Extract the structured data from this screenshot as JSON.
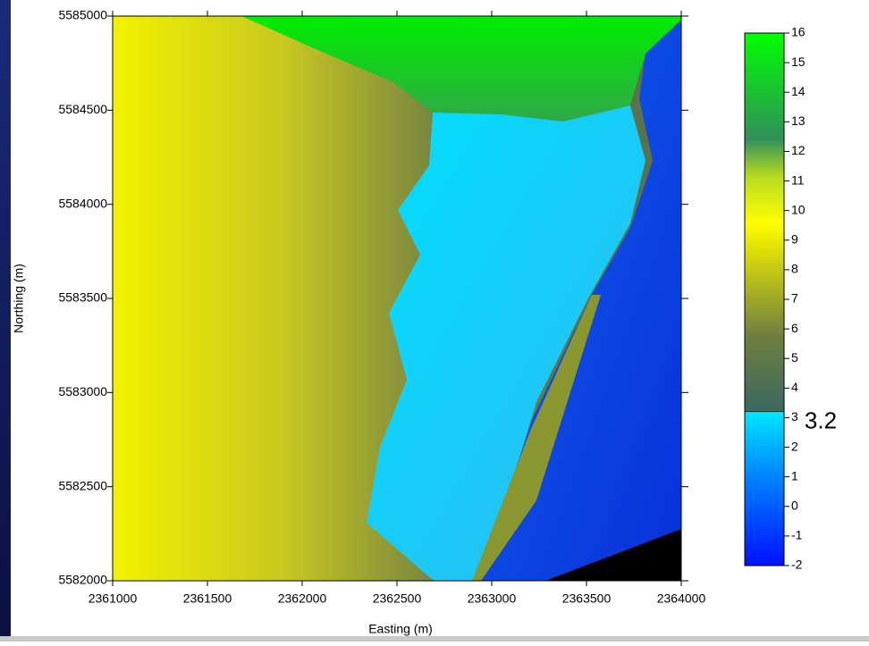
{
  "map": {
    "x_label": "Easting (m)",
    "y_label": "Northing (m)",
    "xlim": [
      2361000,
      2364000
    ],
    "xticks": [
      2361000,
      2361500,
      2362000,
      2362500,
      2363000,
      2363500,
      2364000
    ],
    "ylim": [
      5582000,
      5585000
    ],
    "yticks": [
      5582000,
      5582500,
      5583000,
      5583500,
      5584000,
      5584500,
      5585000
    ],
    "colorbar": {
      "lim": [
        -2,
        16
      ],
      "ticks": [
        -2,
        -1,
        0,
        1,
        2,
        3,
        4,
        5,
        6,
        7,
        8,
        9,
        10,
        11,
        12,
        13,
        14,
        15,
        16
      ],
      "threshold": 3.2
    }
  }
}
